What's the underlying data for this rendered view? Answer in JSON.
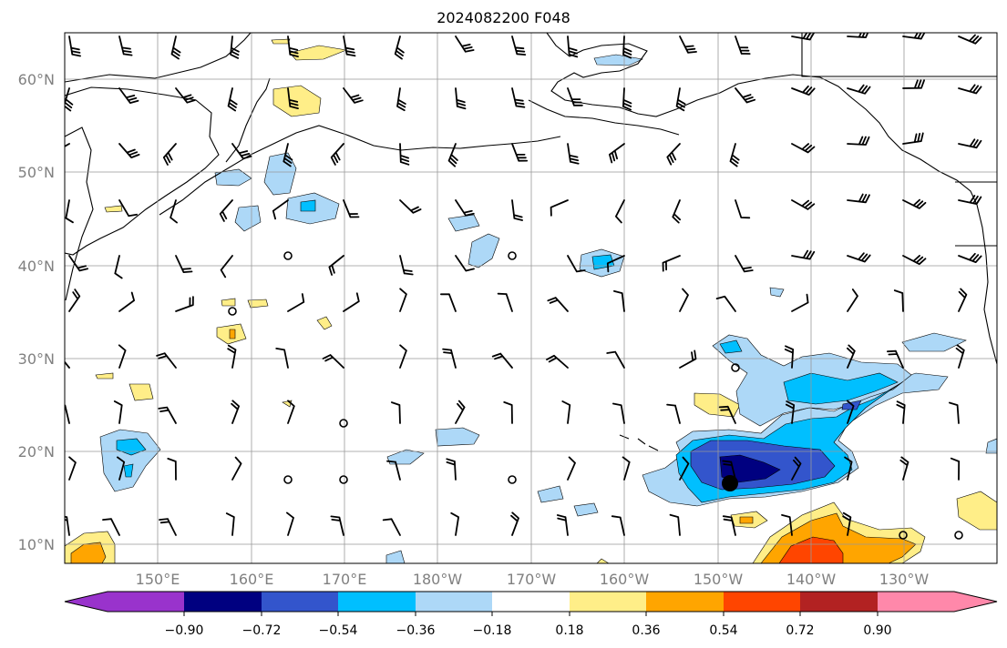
{
  "title": "2024082200 F048",
  "lat_labels": [
    "60°N",
    "50°N",
    "40°N",
    "30°N",
    "20°N",
    "10°N"
  ],
  "lon_labels": [
    "150°E",
    "160°E",
    "170°E",
    "180°W",
    "170°W",
    "160°W",
    "150°W",
    "140°W",
    "130°W"
  ],
  "colorbar": {
    "ticks": [
      "−0.90",
      "−0.72",
      "−0.54",
      "−0.36",
      "−0.18",
      "0.18",
      "0.36",
      "0.54",
      "0.72",
      "0.90"
    ],
    "colors": [
      "#9933cc",
      "#000080",
      "#3355cc",
      "#00bfff",
      "#add8f7",
      "#ffffff",
      "#ffee88",
      "#ffa500",
      "#ff4500",
      "#b22222",
      "#ff88aa"
    ]
  },
  "colors": {
    "light_blue": "#add8f7",
    "blue": "#00bfff",
    "mid_blue": "#3355cc",
    "navy": "#000080",
    "yellow": "#ffee88",
    "orange": "#ffa500",
    "red": "#ff4500"
  }
}
